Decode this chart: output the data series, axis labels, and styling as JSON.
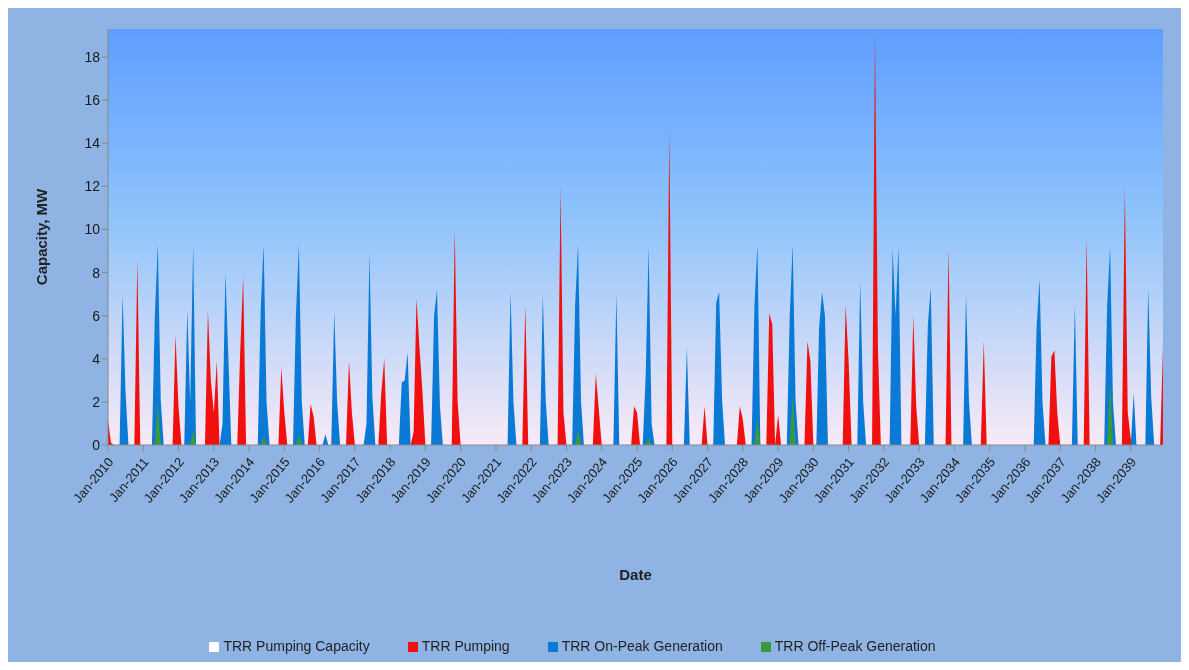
{
  "chart_data": {
    "type": "area",
    "xlabel": "Date",
    "ylabel": "Capacity, MW",
    "xlim": [
      "2010-01",
      "2039-12"
    ],
    "xticks": [
      {
        "value": "2010-01",
        "label": "Jan-2010"
      },
      {
        "value": "2011-01",
        "label": "Jan-2011"
      },
      {
        "value": "2012-01",
        "label": "Jan-2012"
      },
      {
        "value": "2013-01",
        "label": "Jan-2013"
      },
      {
        "value": "2014-01",
        "label": "Jan-2014"
      },
      {
        "value": "2015-01",
        "label": "Jan-2015"
      },
      {
        "value": "2016-01",
        "label": "Jan-2016"
      },
      {
        "value": "2017-01",
        "label": "Jan-2017"
      },
      {
        "value": "2018-01",
        "label": "Jan-2018"
      },
      {
        "value": "2019-01",
        "label": "Jan-2019"
      },
      {
        "value": "2020-01",
        "label": "Jan-2020"
      },
      {
        "value": "2021-01",
        "label": "Jan-2021"
      },
      {
        "value": "2022-01",
        "label": "Jan-2022"
      },
      {
        "value": "2023-01",
        "label": "Jan-2023"
      },
      {
        "value": "2024-01",
        "label": "Jan-2024"
      },
      {
        "value": "2025-01",
        "label": "Jan-2025"
      },
      {
        "value": "2026-01",
        "label": "Jan-2026"
      },
      {
        "value": "2027-01",
        "label": "Jan-2027"
      },
      {
        "value": "2028-01",
        "label": "Jan-2028"
      },
      {
        "value": "2029-01",
        "label": "Jan-2029"
      },
      {
        "value": "2030-01",
        "label": "Jan-2030"
      },
      {
        "value": "2031-01",
        "label": "Jan-2031"
      },
      {
        "value": "2032-01",
        "label": "Jan-2032"
      },
      {
        "value": "2033-01",
        "label": "Jan-2033"
      },
      {
        "value": "2034-01",
        "label": "Jan-2034"
      },
      {
        "value": "2035-01",
        "label": "Jan-2035"
      },
      {
        "value": "2036-01",
        "label": "Jan-2036"
      },
      {
        "value": "2037-01",
        "label": "Jan-2037"
      },
      {
        "value": "2038-01",
        "label": "Jan-2038"
      },
      {
        "value": "2039-01",
        "label": "Jan-2039"
      }
    ],
    "ylim": [
      0,
      19.3
    ],
    "yticks": [
      0,
      2,
      4,
      6,
      8,
      10,
      12,
      14,
      16,
      18
    ],
    "grid": false,
    "legend": "bottom",
    "series": [
      {
        "name": "TRR Pumping Capacity",
        "color": "#ffffff"
      },
      {
        "name": "TRR Pumping",
        "color": "#f01010",
        "x": [
          "2010-01",
          "2010-02",
          "2010-03",
          "2010-10",
          "2010-11",
          "2010-12",
          "2011-11",
          "2011-12",
          "2012-01",
          "2012-02",
          "2012-10",
          "2012-11",
          "2012-12",
          "2013-01",
          "2013-02",
          "2013-03",
          "2013-09",
          "2013-10",
          "2013-11",
          "2013-12",
          "2014-11",
          "2014-12",
          "2015-01",
          "2015-02",
          "2015-09",
          "2015-10",
          "2015-11",
          "2015-12",
          "2016-10",
          "2016-11",
          "2016-12",
          "2017-01",
          "2017-09",
          "2017-10",
          "2017-11",
          "2017-12",
          "2018-08",
          "2018-09",
          "2018-10",
          "2018-11",
          "2018-12",
          "2019-01",
          "2019-10",
          "2019-11",
          "2019-12",
          "2020-01",
          "2021-10",
          "2021-11",
          "2021-12",
          "2022-10",
          "2022-11",
          "2022-12",
          "2023-01",
          "2023-10",
          "2023-11",
          "2023-12",
          "2024-01",
          "2024-11",
          "2024-12",
          "2025-01",
          "2025-02",
          "2025-11",
          "2025-12",
          "2026-01",
          "2026-11",
          "2026-12",
          "2027-01",
          "2027-11",
          "2027-12",
          "2028-01",
          "2028-02",
          "2028-09",
          "2028-10",
          "2028-11",
          "2028-12",
          "2029-01",
          "2029-02",
          "2029-10",
          "2029-11",
          "2029-12",
          "2030-01",
          "2030-11",
          "2030-12",
          "2031-01",
          "2031-02",
          "2031-09",
          "2031-10",
          "2031-11",
          "2031-12",
          "2032-10",
          "2032-11",
          "2032-12",
          "2033-01",
          "2033-10",
          "2033-11",
          "2033-12",
          "2034-10",
          "2034-11",
          "2034-12",
          "2036-09",
          "2036-10",
          "2036-11",
          "2036-12",
          "2037-01",
          "2037-09",
          "2037-10",
          "2037-11",
          "2038-10",
          "2038-11",
          "2038-12",
          "2039-01",
          "2039-02",
          "2039-11",
          "2039-12"
        ],
        "values": [
          1.2,
          0.1,
          0,
          0,
          8.6,
          0,
          0,
          5.1,
          1.8,
          0,
          0,
          6.2,
          3.0,
          1.5,
          3.9,
          0,
          0,
          4.3,
          7.8,
          0,
          0,
          3.6,
          1.5,
          0,
          0,
          1.9,
          1.3,
          0,
          0,
          3.9,
          1.5,
          0,
          0,
          2.4,
          4.0,
          0,
          0,
          0.6,
          6.8,
          4.5,
          2.5,
          0,
          0,
          10.0,
          2.0,
          0,
          0,
          6.5,
          0,
          0,
          11.9,
          1.5,
          0,
          0,
          3.3,
          1.7,
          0,
          0,
          1.8,
          1.5,
          0,
          0,
          14.5,
          0,
          0,
          1.8,
          0,
          0,
          1.8,
          1.2,
          0,
          0,
          6.1,
          5.6,
          0,
          1.4,
          0,
          0,
          4.8,
          3.9,
          0,
          0,
          6.5,
          3.9,
          0,
          0,
          19.0,
          4.4,
          0,
          0,
          6.0,
          1.8,
          0,
          0,
          9.1,
          0,
          0,
          4.8,
          0,
          0,
          4.1,
          4.4,
          1.5,
          0,
          0,
          9.6,
          0,
          0,
          11.9,
          1.5,
          0.3,
          0,
          0,
          4.6
        ]
      },
      {
        "name": "TRR On-Peak Generation",
        "color": "#0a7ad6",
        "x": [
          "2010-05",
          "2010-06",
          "2010-07",
          "2010-08",
          "2011-04",
          "2011-05",
          "2011-06",
          "2011-07",
          "2011-08",
          "2012-03",
          "2012-04",
          "2012-05",
          "2012-06",
          "2012-07",
          "2013-03",
          "2013-04",
          "2013-05",
          "2013-06",
          "2013-07",
          "2014-04",
          "2014-05",
          "2014-06",
          "2014-07",
          "2014-08",
          "2015-04",
          "2015-05",
          "2015-06",
          "2015-07",
          "2015-08",
          "2016-02",
          "2016-03",
          "2016-04",
          "2016-05",
          "2016-06",
          "2016-07",
          "2016-08",
          "2017-04",
          "2017-05",
          "2017-06",
          "2017-07",
          "2017-08",
          "2018-04",
          "2018-05",
          "2018-06",
          "2018-07",
          "2018-08",
          "2019-03",
          "2019-04",
          "2019-05",
          "2019-06",
          "2019-07",
          "2021-05",
          "2021-06",
          "2021-07",
          "2021-08",
          "2022-04",
          "2022-05",
          "2022-06",
          "2022-07",
          "2023-03",
          "2023-04",
          "2023-05",
          "2023-06",
          "2023-07",
          "2024-05",
          "2024-06",
          "2024-07",
          "2025-03",
          "2025-04",
          "2025-05",
          "2025-06",
          "2025-07",
          "2026-05",
          "2026-06",
          "2026-07",
          "2027-03",
          "2027-04",
          "2027-05",
          "2027-06",
          "2027-07",
          "2028-04",
          "2028-05",
          "2028-06",
          "2028-07",
          "2029-04",
          "2029-05",
          "2029-06",
          "2029-07",
          "2029-08",
          "2030-02",
          "2030-03",
          "2030-04",
          "2030-05",
          "2030-06",
          "2031-04",
          "2031-05",
          "2031-06",
          "2031-07",
          "2032-03",
          "2032-04",
          "2032-05",
          "2032-06",
          "2032-07",
          "2033-03",
          "2033-04",
          "2033-05",
          "2033-06",
          "2034-04",
          "2034-05",
          "2034-06",
          "2034-07",
          "2036-04",
          "2036-05",
          "2036-06",
          "2036-07",
          "2036-08",
          "2037-05",
          "2037-06",
          "2037-07",
          "2038-04",
          "2038-05",
          "2038-06",
          "2038-07",
          "2038-08",
          "2039-01",
          "2039-02",
          "2039-03",
          "2039-06",
          "2039-07",
          "2039-08",
          "2039-09"
        ],
        "values": [
          0,
          7.0,
          2.5,
          0,
          0,
          6.0,
          9.3,
          2.1,
          0,
          0,
          6.3,
          2.0,
          9.3,
          0,
          0,
          1.0,
          8.0,
          4.0,
          0,
          0,
          6.2,
          9.3,
          2.0,
          0,
          0,
          6.0,
          9.3,
          2.0,
          0,
          0,
          0.5,
          0,
          0,
          6.2,
          2.0,
          0,
          0,
          1.0,
          8.9,
          2.2,
          0,
          0,
          2.9,
          3.0,
          4.3,
          0,
          0,
          6.0,
          7.2,
          1.8,
          0,
          0,
          7.1,
          2.0,
          0,
          0,
          7.0,
          2.0,
          0,
          0,
          6.5,
          9.3,
          2.0,
          0,
          0,
          7.0,
          0,
          0,
          3.3,
          9.2,
          1.0,
          0,
          0,
          4.5,
          0,
          0,
          6.6,
          7.1,
          2.1,
          0,
          0,
          6.5,
          9.3,
          0,
          0,
          6.0,
          9.3,
          2.0,
          0,
          0,
          5.4,
          7.1,
          6.0,
          0,
          0,
          7.6,
          2.0,
          0,
          0,
          9.1,
          6.0,
          9.2,
          0,
          0,
          5.6,
          7.3,
          0,
          0,
          7.0,
          2.0,
          0,
          0,
          5.5,
          7.7,
          2.0,
          0,
          0,
          6.5,
          0,
          0,
          6.4,
          9.2,
          2.0,
          0,
          0,
          2.4,
          0,
          0,
          7.3,
          2.2,
          0
        ]
      },
      {
        "name": "TRR Off-Peak Generation",
        "color": "#3a9a3a",
        "x": [
          "2011-05",
          "2011-06",
          "2011-07",
          "2012-05",
          "2012-06",
          "2012-07",
          "2014-05",
          "2014-06",
          "2014-07",
          "2015-05",
          "2015-06",
          "2015-07",
          "2023-04",
          "2023-05",
          "2023-06",
          "2025-04",
          "2025-05",
          "2025-06",
          "2028-05",
          "2028-06",
          "2028-07",
          "2029-05",
          "2029-06",
          "2029-07",
          "2038-05",
          "2038-06",
          "2038-07"
        ],
        "values": [
          0,
          2.0,
          0,
          0,
          0.7,
          0,
          0,
          0.4,
          0,
          0,
          0.5,
          0,
          0,
          0.7,
          0,
          0,
          0.3,
          0,
          0,
          1.2,
          0,
          0,
          2.3,
          0,
          0,
          3.0,
          0
        ]
      }
    ]
  }
}
